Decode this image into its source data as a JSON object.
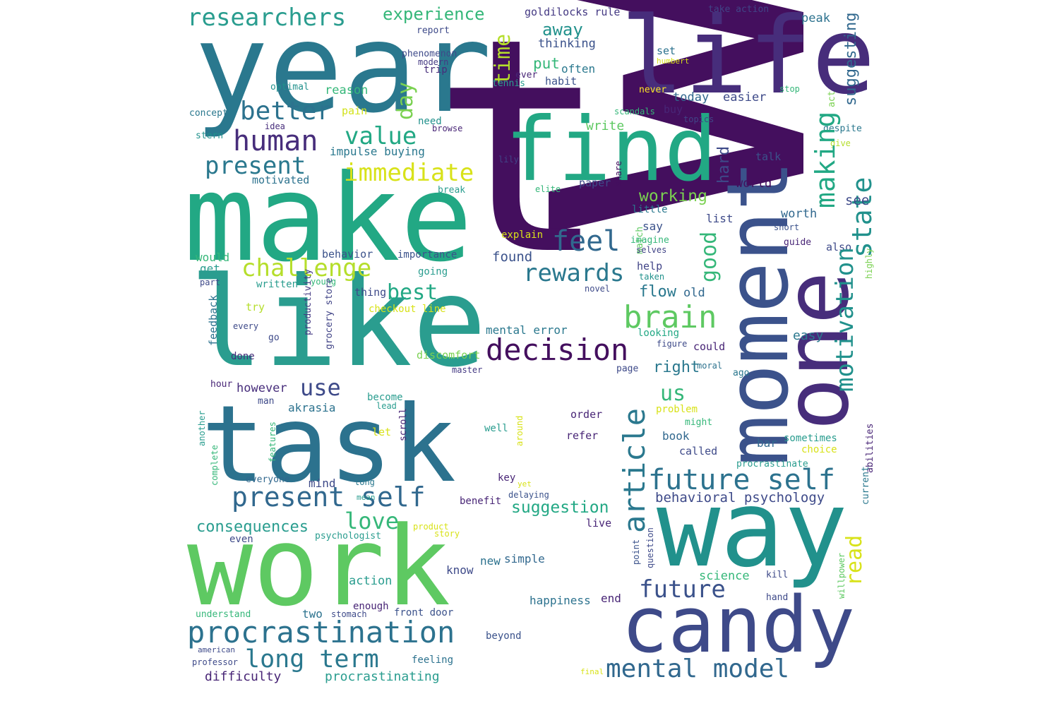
{
  "wordcloud": {
    "words": [
      {
        "text": "want",
        "color": "#440f5e"
      },
      {
        "text": "t",
        "color": "#440f5e"
      },
      {
        "text": "year",
        "color": "#2a788e"
      },
      {
        "text": "life",
        "color": "#472d7b"
      },
      {
        "text": "make",
        "color": "#22a884"
      },
      {
        "text": "like",
        "color": "#2a9d8f"
      },
      {
        "text": "task",
        "color": "#2c728e"
      },
      {
        "text": "work",
        "color": "#5ec962"
      },
      {
        "text": "find",
        "color": "#22a884"
      },
      {
        "text": "moment",
        "color": "#3b528b"
      },
      {
        "text": "one",
        "color": "#472d7b"
      },
      {
        "text": "way",
        "color": "#21918c"
      },
      {
        "text": "candy",
        "color": "#3e4a89"
      },
      {
        "text": "researchers",
        "color": "#2a9d8f"
      },
      {
        "text": "experience",
        "color": "#35b779"
      },
      {
        "text": "time",
        "color": "#b5de2b"
      },
      {
        "text": "goldilocks rule",
        "color": "#443983"
      },
      {
        "text": "take action",
        "color": "#414487"
      },
      {
        "text": "peak",
        "color": "#2c728e"
      },
      {
        "text": "suggesting",
        "color": "#31688e"
      },
      {
        "text": "report",
        "color": "#3e4a89"
      },
      {
        "text": "thinking",
        "color": "#3b528b"
      },
      {
        "text": "away",
        "color": "#21918c"
      },
      {
        "text": "put",
        "color": "#35b779"
      },
      {
        "text": "phenomenon",
        "color": "#3e4a89"
      },
      {
        "text": "modern",
        "color": "#443983"
      },
      {
        "text": "trip",
        "color": "#472d7b"
      },
      {
        "text": "often",
        "color": "#2a788e"
      },
      {
        "text": "set",
        "color": "#2c728e"
      },
      {
        "text": "humbert",
        "color": "#d8e219"
      },
      {
        "text": "ever",
        "color": "#482576"
      },
      {
        "text": "tennis",
        "color": "#2a9d8f"
      },
      {
        "text": "habit",
        "color": "#3b528b"
      },
      {
        "text": "optimal",
        "color": "#21918c"
      },
      {
        "text": "reason",
        "color": "#35b779"
      },
      {
        "text": "never",
        "color": "#fde725"
      },
      {
        "text": "stop",
        "color": "#35b779"
      },
      {
        "text": "act",
        "color": "#7ad151"
      },
      {
        "text": "better",
        "color": "#2c728e"
      },
      {
        "text": "day",
        "color": "#7ad151"
      },
      {
        "text": "today",
        "color": "#31688e"
      },
      {
        "text": "easier",
        "color": "#3e4a89"
      },
      {
        "text": "concept",
        "color": "#2a788e"
      },
      {
        "text": "pain",
        "color": "#d2e21b"
      },
      {
        "text": "buy",
        "color": "#482576"
      },
      {
        "text": "scandals",
        "color": "#35b779"
      },
      {
        "text": "topics",
        "color": "#414487"
      },
      {
        "text": "despite",
        "color": "#2a788e"
      },
      {
        "text": "idea",
        "color": "#472d7b"
      },
      {
        "text": "need",
        "color": "#21918c"
      },
      {
        "text": "browse",
        "color": "#482576"
      },
      {
        "text": "human",
        "color": "#472d7b"
      },
      {
        "text": "value",
        "color": "#22a884"
      },
      {
        "text": "stern",
        "color": "#21918c"
      },
      {
        "text": "write",
        "color": "#5ec962"
      },
      {
        "text": "give",
        "color": "#b5de2b"
      },
      {
        "text": "impulse buying",
        "color": "#2a788e"
      },
      {
        "text": "hard",
        "color": "#3e4a89"
      },
      {
        "text": "making",
        "color": "#22a884"
      },
      {
        "text": "talk",
        "color": "#3b528b"
      },
      {
        "text": "lily",
        "color": "#414487"
      },
      {
        "text": "present",
        "color": "#2a788e"
      },
      {
        "text": "immediate",
        "color": "#d8e219"
      },
      {
        "text": "share",
        "color": "#440f5e"
      },
      {
        "text": "world",
        "color": "#440f5e"
      },
      {
        "text": "motivated",
        "color": "#2c728e"
      },
      {
        "text": "break",
        "color": "#2a9d8f"
      },
      {
        "text": "elite",
        "color": "#35b779"
      },
      {
        "text": "paper",
        "color": "#3e4a89"
      },
      {
        "text": "state",
        "color": "#21918c"
      },
      {
        "text": "working",
        "color": "#7ad151"
      },
      {
        "text": "see",
        "color": "#3e4a89"
      },
      {
        "text": "good",
        "color": "#35b779"
      },
      {
        "text": "worth",
        "color": "#31688e"
      },
      {
        "text": "little",
        "color": "#2a788e"
      },
      {
        "text": "list",
        "color": "#3e4a89"
      },
      {
        "text": "short",
        "color": "#3b528b"
      },
      {
        "text": "explain",
        "color": "#d8e219"
      },
      {
        "text": "feel",
        "color": "#31688e"
      },
      {
        "text": "say",
        "color": "#3b528b"
      },
      {
        "text": "match",
        "color": "#5ec962"
      },
      {
        "text": "imagine",
        "color": "#35b779"
      },
      {
        "text": "guide",
        "color": "#482576"
      },
      {
        "text": "also",
        "color": "#3e4a89"
      },
      {
        "text": "highly",
        "color": "#7ad151"
      },
      {
        "text": "challenge",
        "color": "#b5de2b"
      },
      {
        "text": "would",
        "color": "#35b779"
      },
      {
        "text": "behavior",
        "color": "#3b528b"
      },
      {
        "text": "importance",
        "color": "#3b528b"
      },
      {
        "text": "found",
        "color": "#3b528b"
      },
      {
        "text": "rewards",
        "color": "#2a788e"
      },
      {
        "text": "selves",
        "color": "#414487"
      },
      {
        "text": "help",
        "color": "#414487"
      },
      {
        "text": "taken",
        "color": "#21918c"
      },
      {
        "text": "get",
        "color": "#2a9d8f"
      },
      {
        "text": "going",
        "color": "#2a9d8f"
      },
      {
        "text": "part",
        "color": "#3e4a89"
      },
      {
        "text": "written",
        "color": "#2a9d8f"
      },
      {
        "text": "young",
        "color": "#35b779"
      },
      {
        "text": "productivity",
        "color": "#443983"
      },
      {
        "text": "best",
        "color": "#22a884"
      },
      {
        "text": "thing",
        "color": "#3e4a89"
      },
      {
        "text": "novel",
        "color": "#3e4a89"
      },
      {
        "text": "flow",
        "color": "#2a788e"
      },
      {
        "text": "old",
        "color": "#31688e"
      },
      {
        "text": "brain",
        "color": "#5ec962"
      },
      {
        "text": "try",
        "color": "#b5de2b"
      },
      {
        "text": "checkout line",
        "color": "#d8e219"
      },
      {
        "text": "feedback",
        "color": "#2c728e"
      },
      {
        "text": "grocery store",
        "color": "#414487"
      },
      {
        "text": "every",
        "color": "#3e4a89"
      },
      {
        "text": "mental error",
        "color": "#2a788e"
      },
      {
        "text": "looking",
        "color": "#22a884"
      },
      {
        "text": "easy",
        "color": "#2a788e"
      },
      {
        "text": "go",
        "color": "#3e4a89"
      },
      {
        "text": "figure",
        "color": "#3e4a89"
      },
      {
        "text": "could",
        "color": "#482576"
      },
      {
        "text": "decision",
        "color": "#440f5e"
      },
      {
        "text": "done",
        "color": "#472d7b"
      },
      {
        "text": "discomfort",
        "color": "#7ad151"
      },
      {
        "text": "moral",
        "color": "#2c728e"
      },
      {
        "text": "motivation",
        "color": "#21918c"
      },
      {
        "text": "master",
        "color": "#443983"
      },
      {
        "text": "page",
        "color": "#3e4a89"
      },
      {
        "text": "right",
        "color": "#2a788e"
      },
      {
        "text": "ago",
        "color": "#2a788e"
      },
      {
        "text": "use",
        "color": "#3e4a89"
      },
      {
        "text": "hour",
        "color": "#482576"
      },
      {
        "text": "however",
        "color": "#472d7b"
      },
      {
        "text": "us",
        "color": "#35b779"
      },
      {
        "text": "become",
        "color": "#2a9d8f"
      },
      {
        "text": "man",
        "color": "#3e4a89"
      },
      {
        "text": "lead",
        "color": "#2a9d8f"
      },
      {
        "text": "akrasia",
        "color": "#2c728e"
      },
      {
        "text": "article",
        "color": "#2a788e"
      },
      {
        "text": "problem",
        "color": "#d8e219"
      },
      {
        "text": "another",
        "color": "#2a9d8f"
      },
      {
        "text": "abilities",
        "color": "#482576"
      },
      {
        "text": "current",
        "color": "#2a788e"
      },
      {
        "text": "order",
        "color": "#482576"
      },
      {
        "text": "might",
        "color": "#35b779"
      },
      {
        "text": "let",
        "color": "#d8e219"
      },
      {
        "text": "scroll",
        "color": "#482576"
      },
      {
        "text": "well",
        "color": "#2a9d8f"
      },
      {
        "text": "around",
        "color": "#d8e219"
      },
      {
        "text": "book",
        "color": "#31688e"
      },
      {
        "text": "refer",
        "color": "#482576"
      },
      {
        "text": "sometimes",
        "color": "#2a9d8f"
      },
      {
        "text": "bar",
        "color": "#31688e"
      },
      {
        "text": "features",
        "color": "#35b779"
      },
      {
        "text": "choice",
        "color": "#d8e219"
      },
      {
        "text": "called",
        "color": "#3e4a89"
      },
      {
        "text": "complete",
        "color": "#35b779"
      },
      {
        "text": "everyone",
        "color": "#31688e"
      },
      {
        "text": "procrastinate",
        "color": "#2a9d8f"
      },
      {
        "text": "future self",
        "color": "#2c728e"
      },
      {
        "text": "mind",
        "color": "#3e4a89"
      },
      {
        "text": "long",
        "color": "#2a788e"
      },
      {
        "text": "key",
        "color": "#482576"
      },
      {
        "text": "yet",
        "color": "#d8e219"
      },
      {
        "text": "delaying",
        "color": "#3b528b"
      },
      {
        "text": "present self",
        "color": "#31688e"
      },
      {
        "text": "mean",
        "color": "#2a9d8f"
      },
      {
        "text": "benefit",
        "color": "#482576"
      },
      {
        "text": "behavioral psychology",
        "color": "#3e4a89"
      },
      {
        "text": "suggestion",
        "color": "#22a884"
      },
      {
        "text": "read",
        "color": "#d8e219"
      },
      {
        "text": "love",
        "color": "#35b779"
      },
      {
        "text": "live",
        "color": "#482576"
      },
      {
        "text": "consequences",
        "color": "#2a9d8f"
      },
      {
        "text": "product",
        "color": "#d8e219"
      },
      {
        "text": "story",
        "color": "#d8e219"
      },
      {
        "text": "psychologist",
        "color": "#2a9d8f"
      },
      {
        "text": "even",
        "color": "#3e4a89"
      },
      {
        "text": "point",
        "color": "#3b528b"
      },
      {
        "text": "question",
        "color": "#3e4a89"
      },
      {
        "text": "willpower",
        "color": "#5ec962"
      },
      {
        "text": "know",
        "color": "#3e4a89"
      },
      {
        "text": "simple",
        "color": "#31688e"
      },
      {
        "text": "new",
        "color": "#2c728e"
      },
      {
        "text": "future",
        "color": "#3b528b"
      },
      {
        "text": "science",
        "color": "#35b779"
      },
      {
        "text": "kill",
        "color": "#3e4a89"
      },
      {
        "text": "action",
        "color": "#2a9d8f"
      },
      {
        "text": "end",
        "color": "#482576"
      },
      {
        "text": "happiness",
        "color": "#2c728e"
      },
      {
        "text": "hand",
        "color": "#3e4a89"
      },
      {
        "text": "two",
        "color": "#2c728e"
      },
      {
        "text": "enough",
        "color": "#482576"
      },
      {
        "text": "understand",
        "color": "#35b779"
      },
      {
        "text": "stomach",
        "color": "#3e4a89"
      },
      {
        "text": "front door",
        "color": "#3b528b"
      },
      {
        "text": "procrastination",
        "color": "#2c728e"
      },
      {
        "text": "beyond",
        "color": "#3b528b"
      },
      {
        "text": "american",
        "color": "#3e4a89"
      },
      {
        "text": "long term",
        "color": "#2a788e"
      },
      {
        "text": "professor",
        "color": "#3e4a89"
      },
      {
        "text": "feeling",
        "color": "#2c728e"
      },
      {
        "text": "mental model",
        "color": "#31688e"
      },
      {
        "text": "final",
        "color": "#d8e219"
      },
      {
        "text": "difficulty",
        "color": "#482576"
      },
      {
        "text": "procrastinating",
        "color": "#2a9d8f"
      }
    ]
  }
}
